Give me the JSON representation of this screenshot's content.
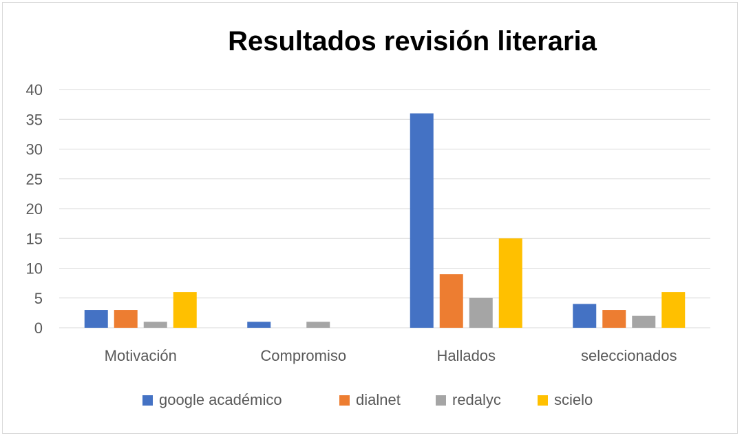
{
  "chart_data": {
    "type": "bar",
    "title": "Resultados revisión literaria",
    "categories": [
      "Motivación",
      "Compromiso",
      "Hallados",
      "seleccionados"
    ],
    "series": [
      {
        "name": "google académico",
        "color": "#4472C4",
        "values": [
          3,
          1,
          36,
          4
        ]
      },
      {
        "name": "dialnet",
        "color": "#ED7D31",
        "values": [
          3,
          0,
          9,
          3
        ]
      },
      {
        "name": "redalyc",
        "color": "#A5A5A5",
        "values": [
          1,
          1,
          5,
          2
        ]
      },
      {
        "name": "scielo",
        "color": "#FFC000",
        "values": [
          6,
          0,
          15,
          6
        ]
      }
    ],
    "yticks": [
      "0",
      "5",
      "10",
      "15",
      "20",
      "25",
      "30",
      "35",
      "40"
    ],
    "ylim": [
      0,
      40
    ],
    "grid": true,
    "legend_position": "bottom"
  }
}
